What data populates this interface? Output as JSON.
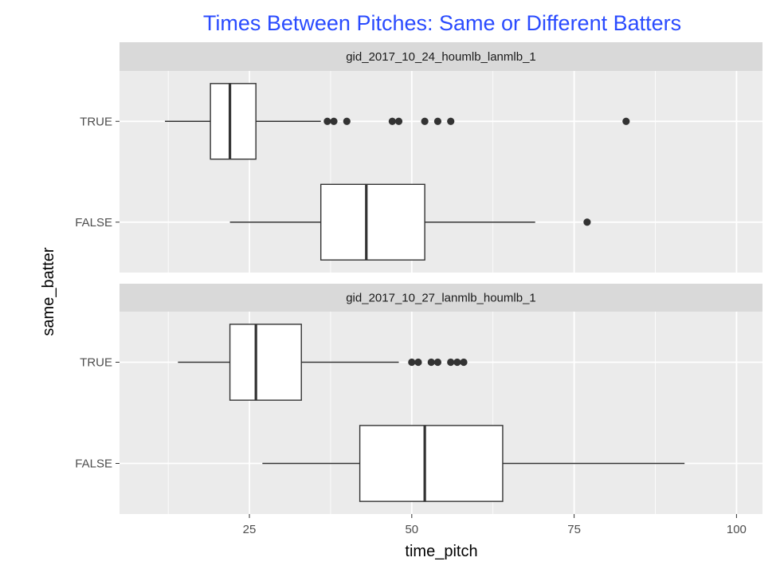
{
  "chart_data": {
    "type": "boxplot",
    "title": "Times Between Pitches: Same or Different Batters",
    "xlabel": "time_pitch",
    "ylabel": "same_batter",
    "xlim": [
      5,
      104
    ],
    "x_ticks": [
      25,
      50,
      75,
      100
    ],
    "categories": [
      "TRUE",
      "FALSE"
    ],
    "colors": {
      "title": "#2a4bff",
      "panel_bg": "#ebebeb",
      "strip_bg": "#d9d9d9",
      "grid": "#ffffff",
      "box_fill": "#ffffff",
      "box_line": "#333333",
      "outlier": "#333333"
    },
    "grid": true,
    "panels": [
      {
        "label": "gid_2017_10_24_houmlb_lanmlb_1",
        "boxes": [
          {
            "category": "TRUE",
            "min": 12,
            "q1": 19,
            "median": 22,
            "q3": 26,
            "max": 36,
            "outliers": [
              37,
              38,
              40,
              47,
              48,
              52,
              54,
              56,
              83
            ]
          },
          {
            "category": "FALSE",
            "min": 22,
            "q1": 36,
            "median": 43,
            "q3": 52,
            "max": 69,
            "outliers": [
              77
            ]
          }
        ]
      },
      {
        "label": "gid_2017_10_27_lanmlb_houmlb_1",
        "boxes": [
          {
            "category": "TRUE",
            "min": 14,
            "q1": 22,
            "median": 26,
            "q3": 33,
            "max": 48,
            "outliers": [
              50,
              51,
              53,
              54,
              56,
              57,
              58
            ]
          },
          {
            "category": "FALSE",
            "min": 27,
            "q1": 42,
            "median": 52,
            "q3": 64,
            "max": 92,
            "outliers": []
          }
        ]
      }
    ]
  }
}
